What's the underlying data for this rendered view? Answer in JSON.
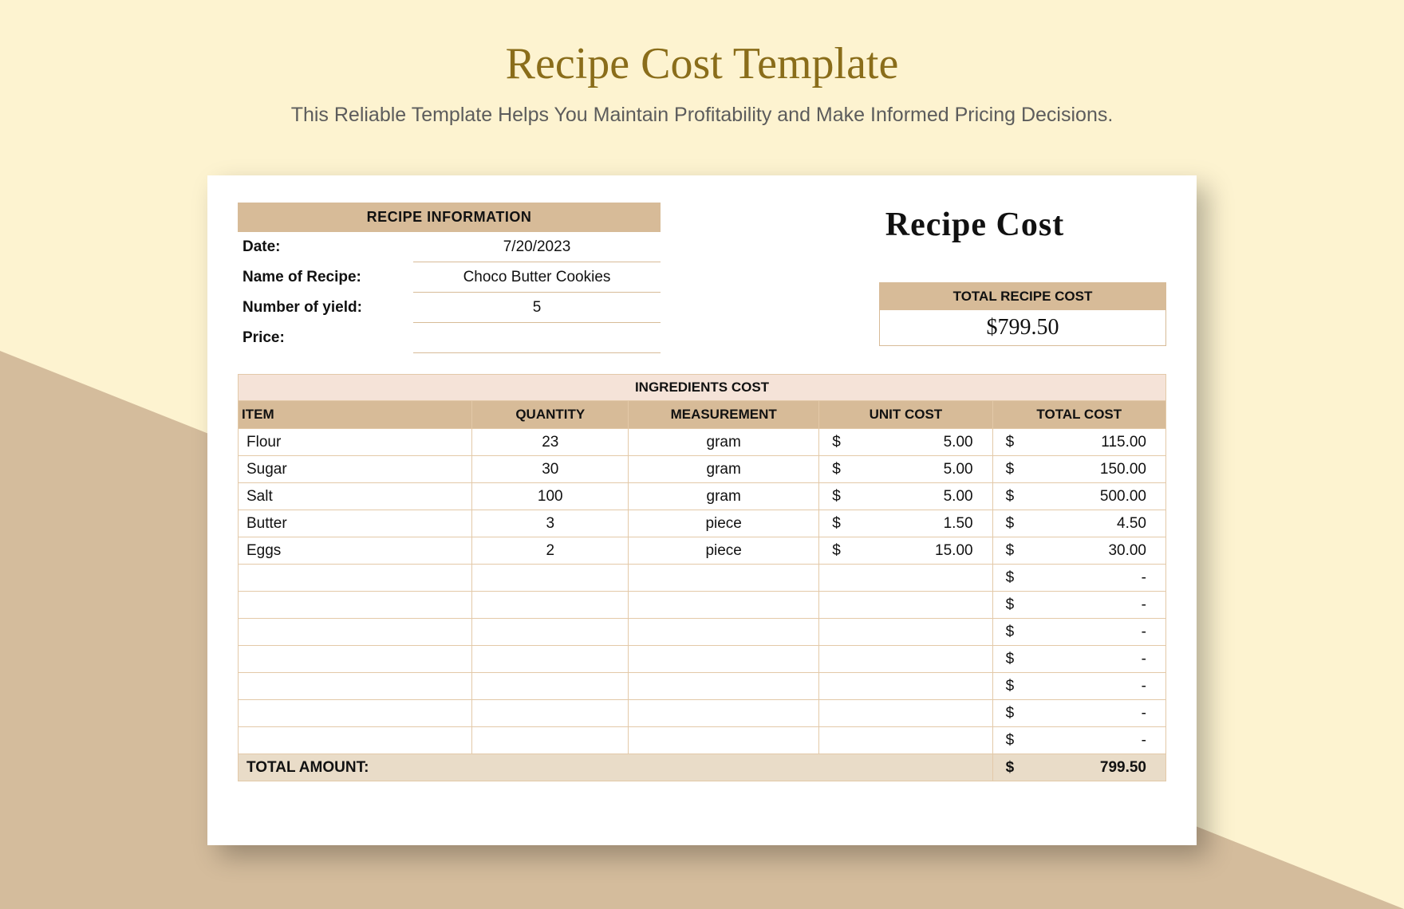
{
  "page": {
    "title": "Recipe Cost Template",
    "subtitle": "This Reliable Template Helps You Maintain Profitability and Make Informed Pricing Decisions."
  },
  "colors": {
    "page_bg": "#fdf3d0",
    "triangle": "#d4bc9c",
    "title_color": "#8a6d1a",
    "subtitle_color": "#5c5c5c",
    "header_fill": "#d7bb98",
    "light_fill": "#f5e3d8",
    "border": "#e3c9a8",
    "total_row_fill": "#e9dcc8",
    "sheet_bg": "#ffffff"
  },
  "sheet": {
    "recipe_info_header": "RECIPE INFORMATION",
    "date_label": "Date:",
    "date_value": "7/20/2023",
    "name_label": "Name of Recipe:",
    "name_value": "Choco Butter Cookies",
    "yield_label": "Number of yield:",
    "yield_value": "5",
    "price_label": "Price:",
    "price_value": "",
    "right_title": "Recipe Cost",
    "total_header": "TOTAL RECIPE COST",
    "total_value": "$799.50",
    "ingredients_title": "INGREDIENTS COST",
    "columns": {
      "item": "ITEM",
      "quantity": "QUANTITY",
      "measurement": "MEASUREMENT",
      "unit_cost": "UNIT COST",
      "total_cost": "TOTAL COST"
    },
    "rows": [
      {
        "item": "Flour",
        "quantity": "23",
        "measurement": "gram",
        "unit_cost": "5.00",
        "total_cost": "115.00"
      },
      {
        "item": "Sugar",
        "quantity": "30",
        "measurement": "gram",
        "unit_cost": "5.00",
        "total_cost": "150.00"
      },
      {
        "item": "Salt",
        "quantity": "100",
        "measurement": "gram",
        "unit_cost": "5.00",
        "total_cost": "500.00"
      },
      {
        "item": "Butter",
        "quantity": "3",
        "measurement": "piece",
        "unit_cost": "1.50",
        "total_cost": "4.50"
      },
      {
        "item": "Eggs",
        "quantity": "2",
        "measurement": "piece",
        "unit_cost": "15.00",
        "total_cost": "30.00"
      },
      {
        "item": "",
        "quantity": "",
        "measurement": "",
        "unit_cost": "",
        "total_cost": "-"
      },
      {
        "item": "",
        "quantity": "",
        "measurement": "",
        "unit_cost": "",
        "total_cost": "-"
      },
      {
        "item": "",
        "quantity": "",
        "measurement": "",
        "unit_cost": "",
        "total_cost": "-"
      },
      {
        "item": "",
        "quantity": "",
        "measurement": "",
        "unit_cost": "",
        "total_cost": "-"
      },
      {
        "item": "",
        "quantity": "",
        "measurement": "",
        "unit_cost": "",
        "total_cost": "-"
      },
      {
        "item": "",
        "quantity": "",
        "measurement": "",
        "unit_cost": "",
        "total_cost": "-"
      },
      {
        "item": "",
        "quantity": "",
        "measurement": "",
        "unit_cost": "",
        "total_cost": "-"
      }
    ],
    "total_amount_label": "TOTAL AMOUNT:",
    "total_amount_value": "799.50",
    "currency": "$"
  }
}
